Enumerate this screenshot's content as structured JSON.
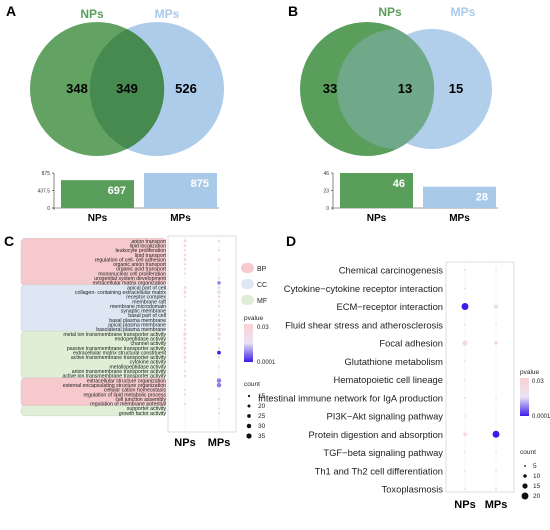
{
  "panels": [
    {
      "letter": "A",
      "venn": {
        "left_label": "NPs",
        "right_label": "MPs",
        "left_only": "348",
        "overlap": "349",
        "right_only": "526"
      },
      "bar": {
        "categories": [
          "NPs",
          "MPs"
        ],
        "values": [
          697,
          875
        ],
        "value_labels": [
          "697",
          "875"
        ],
        "ticks": [
          "875",
          "437.5",
          "0"
        ],
        "ymax": 875
      }
    },
    {
      "letter": "B",
      "venn": {
        "left_label": "NPs",
        "right_label": "MPs",
        "left_only": "33",
        "overlap": "13",
        "right_only": "15"
      },
      "bar": {
        "categories": [
          "NPs",
          "MPs"
        ],
        "values": [
          46,
          28
        ],
        "value_labels": [
          "46",
          "28"
        ],
        "ticks": [
          "46",
          "23",
          "0"
        ],
        "ymax": 46
      }
    }
  ],
  "colors": {
    "nps": "#5a9e5c",
    "mps": "#a9c9e9",
    "bp": "#f6c9cc",
    "cc": "#dde7f3",
    "mf": "#deefd6",
    "low_p": "#fbd0d0",
    "high_p": "#3a1de6"
  },
  "chart_data": [
    {
      "type": "scatter",
      "panel": "C",
      "x_categories": [
        "NPs",
        "MPs"
      ],
      "terms": [
        "anion transport",
        "lipid localization",
        "leukocyte proliferation",
        "lipid transport",
        "regulation of cell- cell adhesion",
        "organic anion transport",
        "organic acid transport",
        "mononuclear cell proliferation",
        "urogenital system development",
        "extracellular matrix organization",
        "apical part of cell",
        "collagen- containing extracellular matrix",
        "receptor complex",
        "membrane raft",
        "membrane microdomain",
        "synaptic membrane",
        "basal part of cell",
        "basal plasma membrane",
        "apical plasma membrane",
        "basolateral plasma membrane",
        "metal ion transmembrane transporter activity",
        "endopeptidase activity",
        "channel activity",
        "passive transmembrane transporter activity",
        "extracellular matrix structural constituent",
        "active transmembrane transporter activity",
        "cytokine activity",
        "metallopeptidase activity",
        "anion transmembrane transporter activity",
        "active ion transmembrane transporter activity",
        "extracellular structure organization",
        "external encapsulating structure organization",
        "cellular cation homeostasis",
        "regulation of lipid metabolic process",
        "cell junction assembly",
        "regulation of membrane potential",
        "supporter activity",
        "growth factor activity"
      ],
      "groups": [
        {
          "name": "BP",
          "start": 0,
          "end": 9
        },
        {
          "name": "CC",
          "start": 10,
          "end": 19
        },
        {
          "name": "MF",
          "start": 20,
          "end": 29
        },
        {
          "name": "BP",
          "start": 30,
          "end": 35
        },
        {
          "name": "MF",
          "start": 36,
          "end": 37
        }
      ],
      "legend_groups": [
        "BP",
        "CC",
        "MF"
      ],
      "points": [
        {
          "term": 0,
          "x": 0,
          "count": 20,
          "p": 0.012
        },
        {
          "term": 0,
          "x": 1,
          "count": 15,
          "p": 0.02
        },
        {
          "term": 1,
          "x": 0,
          "count": 18,
          "p": 0.015
        },
        {
          "term": 2,
          "x": 0,
          "count": 15,
          "p": 0.02
        },
        {
          "term": 2,
          "x": 1,
          "count": 15,
          "p": 0.02
        },
        {
          "term": 3,
          "x": 0,
          "count": 15,
          "p": 0.02
        },
        {
          "term": 4,
          "x": 0,
          "count": 20,
          "p": 0.012
        },
        {
          "term": 4,
          "x": 1,
          "count": 20,
          "p": 0.015
        },
        {
          "term": 5,
          "x": 0,
          "count": 15,
          "p": 0.02
        },
        {
          "term": 6,
          "x": 0,
          "count": 15,
          "p": 0.02
        },
        {
          "term": 7,
          "x": 0,
          "count": 15,
          "p": 0.02
        },
        {
          "term": 8,
          "x": 1,
          "count": 15,
          "p": 0.02
        },
        {
          "term": 9,
          "x": 1,
          "count": 25,
          "p": 0.0005
        },
        {
          "term": 10,
          "x": 0,
          "count": 20,
          "p": 0.015
        },
        {
          "term": 10,
          "x": 1,
          "count": 20,
          "p": 0.012
        },
        {
          "term": 11,
          "x": 0,
          "count": 20,
          "p": 0.015
        },
        {
          "term": 11,
          "x": 1,
          "count": 25,
          "p": 0.003
        },
        {
          "term": 12,
          "x": 0,
          "count": 15,
          "p": 0.02
        },
        {
          "term": 12,
          "x": 1,
          "count": 18,
          "p": 0.015
        },
        {
          "term": 13,
          "x": 1,
          "count": 15,
          "p": 0.02
        },
        {
          "term": 14,
          "x": 1,
          "count": 15,
          "p": 0.02
        },
        {
          "term": 15,
          "x": 0,
          "count": 15,
          "p": 0.02
        },
        {
          "term": 16,
          "x": 0,
          "count": 15,
          "p": 0.02
        },
        {
          "term": 16,
          "x": 1,
          "count": 15,
          "p": 0.02
        },
        {
          "term": 17,
          "x": 0,
          "count": 15,
          "p": 0.02
        },
        {
          "term": 17,
          "x": 1,
          "count": 15,
          "p": 0.02
        },
        {
          "term": 18,
          "x": 0,
          "count": 18,
          "p": 0.015
        },
        {
          "term": 18,
          "x": 1,
          "count": 20,
          "p": 0.012
        },
        {
          "term": 19,
          "x": 0,
          "count": 15,
          "p": 0.02
        },
        {
          "term": 19,
          "x": 1,
          "count": 15,
          "p": 0.02
        },
        {
          "term": 20,
          "x": 0,
          "count": 25,
          "p": 0.008
        },
        {
          "term": 20,
          "x": 1,
          "count": 25,
          "p": 0.004
        },
        {
          "term": 21,
          "x": 0,
          "count": 20,
          "p": 0.012
        },
        {
          "term": 21,
          "x": 1,
          "count": 20,
          "p": 0.015
        },
        {
          "term": 22,
          "x": 0,
          "count": 20,
          "p": 0.015
        },
        {
          "term": 23,
          "x": 0,
          "count": 20,
          "p": 0.015
        },
        {
          "term": 23,
          "x": 1,
          "count": 15,
          "p": 0.02
        },
        {
          "term": 24,
          "x": 0,
          "count": 15,
          "p": 0.02
        },
        {
          "term": 24,
          "x": 1,
          "count": 25,
          "p": 0.0001
        },
        {
          "term": 25,
          "x": 0,
          "count": 20,
          "p": 0.015
        },
        {
          "term": 25,
          "x": 1,
          "count": 15,
          "p": 0.02
        },
        {
          "term": 26,
          "x": 0,
          "count": 15,
          "p": 0.02
        },
        {
          "term": 27,
          "x": 1,
          "count": 15,
          "p": 0.02
        },
        {
          "term": 28,
          "x": 0,
          "count": 15,
          "p": 0.02
        },
        {
          "term": 29,
          "x": 0,
          "count": 15,
          "p": 0.02
        },
        {
          "term": 30,
          "x": 1,
          "count": 30,
          "p": 0.0004
        },
        {
          "term": 31,
          "x": 1,
          "count": 30,
          "p": 0.0004
        },
        {
          "term": 32,
          "x": 0,
          "count": 15,
          "p": 0.02
        },
        {
          "term": 33,
          "x": 0,
          "count": 15,
          "p": 0.02
        },
        {
          "term": 34,
          "x": 1,
          "count": 15,
          "p": 0.02
        },
        {
          "term": 35,
          "x": 0,
          "count": 15,
          "p": 0.02
        },
        {
          "term": 36,
          "x": 1,
          "count": 15,
          "p": 0.02
        },
        {
          "term": 37,
          "x": 1,
          "count": 15,
          "p": 0.02
        }
      ],
      "legend": {
        "pvalue_title": "pvalue",
        "pvalue_high": "0.03",
        "pvalue_low": "0.0001",
        "count_title": "count",
        "count_values": [
          15,
          20,
          25,
          30,
          35
        ],
        "count_labels": [
          "15",
          "20",
          "25",
          "30",
          "35"
        ]
      }
    },
    {
      "type": "scatter",
      "panel": "D",
      "x_categories": [
        "NPs",
        "MPs"
      ],
      "terms": [
        "Chemical carcinogenesis",
        "Cytokine−cytokine receptor interaction",
        "ECM−receptor interaction",
        "Fluid shear stress and atherosclerosis",
        "Focal adhesion",
        "Glutathione metabolism",
        "Hematopoietic cell lineage",
        "Intestinal immune network for IgA production",
        "PI3K−Akt signaling pathway",
        "Protein digestion and absorption",
        "TGF−beta signaling pathway",
        "Th1 and Th2 cell differentiation",
        "Toxoplasmosis"
      ],
      "points": [
        {
          "term": 0,
          "x": 0,
          "count": 5,
          "p": 0.025
        },
        {
          "term": 0,
          "x": 1,
          "count": 5,
          "p": 0.025
        },
        {
          "term": 1,
          "x": 0,
          "count": 5,
          "p": 0.025
        },
        {
          "term": 2,
          "x": 0,
          "count": 20,
          "p": 0.0001
        },
        {
          "term": 2,
          "x": 1,
          "count": 12,
          "p": 0.005
        },
        {
          "term": 3,
          "x": 0,
          "count": 5,
          "p": 0.025
        },
        {
          "term": 3,
          "x": 1,
          "count": 5,
          "p": 0.025
        },
        {
          "term": 4,
          "x": 0,
          "count": 15,
          "p": 0.008
        },
        {
          "term": 4,
          "x": 1,
          "count": 10,
          "p": 0.02
        },
        {
          "term": 5,
          "x": 0,
          "count": 5,
          "p": 0.025
        },
        {
          "term": 6,
          "x": 0,
          "count": 5,
          "p": 0.025
        },
        {
          "term": 7,
          "x": 0,
          "count": 5,
          "p": 0.025
        },
        {
          "term": 7,
          "x": 1,
          "count": 5,
          "p": 0.025
        },
        {
          "term": 8,
          "x": 0,
          "count": 5,
          "p": 0.025
        },
        {
          "term": 8,
          "x": 1,
          "count": 5,
          "p": 0.025
        },
        {
          "term": 9,
          "x": 0,
          "count": 10,
          "p": 0.015
        },
        {
          "term": 9,
          "x": 1,
          "count": 20,
          "p": 0.0001
        },
        {
          "term": 10,
          "x": 0,
          "count": 5,
          "p": 0.025
        },
        {
          "term": 10,
          "x": 1,
          "count": 5,
          "p": 0.025
        },
        {
          "term": 11,
          "x": 0,
          "count": 5,
          "p": 0.025
        },
        {
          "term": 11,
          "x": 1,
          "count": 5,
          "p": 0.025
        },
        {
          "term": 12,
          "x": 0,
          "count": 5,
          "p": 0.025
        },
        {
          "term": 12,
          "x": 1,
          "count": 5,
          "p": 0.025
        }
      ],
      "legend": {
        "pvalue_title": "pvalue",
        "pvalue_high": "0.03",
        "pvalue_low": "0.0001",
        "count_title": "count",
        "count_values": [
          5,
          10,
          15,
          20
        ],
        "count_labels": [
          "5",
          "10",
          "15",
          "20"
        ]
      }
    }
  ]
}
